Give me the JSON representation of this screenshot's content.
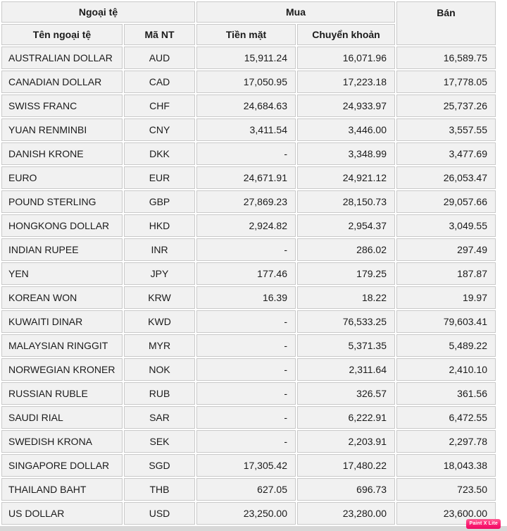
{
  "table": {
    "headers": {
      "currency_group": "Ngoại tệ",
      "buy_group": "Mua",
      "sell": "Bán",
      "currency_name": "Tên ngoại tệ",
      "currency_code": "Mã NT",
      "buy_cash": "Tiền mặt",
      "buy_transfer": "Chuyển khoản"
    },
    "rows": [
      {
        "name": "AUSTRALIAN DOLLAR",
        "code": "AUD",
        "cash": "15,911.24",
        "transfer": "16,071.96",
        "sell": "16,589.75"
      },
      {
        "name": "CANADIAN DOLLAR",
        "code": "CAD",
        "cash": "17,050.95",
        "transfer": "17,223.18",
        "sell": "17,778.05"
      },
      {
        "name": "SWISS FRANC",
        "code": "CHF",
        "cash": "24,684.63",
        "transfer": "24,933.97",
        "sell": "25,737.26"
      },
      {
        "name": "YUAN RENMINBI",
        "code": "CNY",
        "cash": "3,411.54",
        "transfer": "3,446.00",
        "sell": "3,557.55"
      },
      {
        "name": "DANISH KRONE",
        "code": "DKK",
        "cash": "-",
        "transfer": "3,348.99",
        "sell": "3,477.69"
      },
      {
        "name": "EURO",
        "code": "EUR",
        "cash": "24,671.91",
        "transfer": "24,921.12",
        "sell": "26,053.47"
      },
      {
        "name": "POUND STERLING",
        "code": "GBP",
        "cash": "27,869.23",
        "transfer": "28,150.73",
        "sell": "29,057.66"
      },
      {
        "name": "HONGKONG DOLLAR",
        "code": "HKD",
        "cash": "2,924.82",
        "transfer": "2,954.37",
        "sell": "3,049.55"
      },
      {
        "name": "INDIAN RUPEE",
        "code": "INR",
        "cash": "-",
        "transfer": "286.02",
        "sell": "297.49"
      },
      {
        "name": "YEN",
        "code": "JPY",
        "cash": "177.46",
        "transfer": "179.25",
        "sell": "187.87"
      },
      {
        "name": "KOREAN WON",
        "code": "KRW",
        "cash": "16.39",
        "transfer": "18.22",
        "sell": "19.97"
      },
      {
        "name": "KUWAITI DINAR",
        "code": "KWD",
        "cash": "-",
        "transfer": "76,533.25",
        "sell": "79,603.41"
      },
      {
        "name": "MALAYSIAN RINGGIT",
        "code": "MYR",
        "cash": "-",
        "transfer": "5,371.35",
        "sell": "5,489.22"
      },
      {
        "name": "NORWEGIAN KRONER",
        "code": "NOK",
        "cash": "-",
        "transfer": "2,311.64",
        "sell": "2,410.10"
      },
      {
        "name": "RUSSIAN RUBLE",
        "code": "RUB",
        "cash": "-",
        "transfer": "326.57",
        "sell": "361.56"
      },
      {
        "name": "SAUDI RIAL",
        "code": "SAR",
        "cash": "-",
        "transfer": "6,222.91",
        "sell": "6,472.55"
      },
      {
        "name": "SWEDISH KRONA",
        "code": "SEK",
        "cash": "-",
        "transfer": "2,203.91",
        "sell": "2,297.78"
      },
      {
        "name": "SINGAPORE DOLLAR",
        "code": "SGD",
        "cash": "17,305.42",
        "transfer": "17,480.22",
        "sell": "18,043.38"
      },
      {
        "name": "THAILAND BAHT",
        "code": "THB",
        "cash": "627.05",
        "transfer": "696.73",
        "sell": "723.50"
      },
      {
        "name": "US DOLLAR",
        "code": "USD",
        "cash": "23,250.00",
        "transfer": "23,280.00",
        "sell": "23,600.00"
      }
    ]
  },
  "chart_data": {
    "type": "table",
    "columns": [
      "Tên ngoại tệ",
      "Mã NT",
      "Mua Tiền mặt",
      "Mua Chuyển khoản",
      "Bán"
    ],
    "rows": [
      [
        "AUSTRALIAN DOLLAR",
        "AUD",
        "15,911.24",
        "16,071.96",
        "16,589.75"
      ],
      [
        "CANADIAN DOLLAR",
        "CAD",
        "17,050.95",
        "17,223.18",
        "17,778.05"
      ],
      [
        "SWISS FRANC",
        "CHF",
        "24,684.63",
        "24,933.97",
        "25,737.26"
      ],
      [
        "YUAN RENMINBI",
        "CNY",
        "3,411.54",
        "3,446.00",
        "3,557.55"
      ],
      [
        "DANISH KRONE",
        "DKK",
        "-",
        "3,348.99",
        "3,477.69"
      ],
      [
        "EURO",
        "EUR",
        "24,671.91",
        "24,921.12",
        "26,053.47"
      ],
      [
        "POUND STERLING",
        "GBP",
        "27,869.23",
        "28,150.73",
        "29,057.66"
      ],
      [
        "HONGKONG DOLLAR",
        "HKD",
        "2,924.82",
        "2,954.37",
        "3,049.55"
      ],
      [
        "INDIAN RUPEE",
        "INR",
        "-",
        "286.02",
        "297.49"
      ],
      [
        "YEN",
        "JPY",
        "177.46",
        "179.25",
        "187.87"
      ],
      [
        "KOREAN WON",
        "KRW",
        "16.39",
        "18.22",
        "19.97"
      ],
      [
        "KUWAITI DINAR",
        "KWD",
        "-",
        "76,533.25",
        "79,603.41"
      ],
      [
        "MALAYSIAN RINGGIT",
        "MYR",
        "-",
        "5,371.35",
        "5,489.22"
      ],
      [
        "NORWEGIAN KRONER",
        "NOK",
        "-",
        "2,311.64",
        "2,410.10"
      ],
      [
        "RUSSIAN RUBLE",
        "RUB",
        "-",
        "326.57",
        "361.56"
      ],
      [
        "SAUDI RIAL",
        "SAR",
        "-",
        "6,222.91",
        "6,472.55"
      ],
      [
        "SWEDISH KRONA",
        "SEK",
        "-",
        "2,203.91",
        "2,297.78"
      ],
      [
        "SINGAPORE DOLLAR",
        "SGD",
        "17,305.42",
        "17,480.22",
        "18,043.38"
      ],
      [
        "THAILAND BAHT",
        "THB",
        "627.05",
        "696.73",
        "723.50"
      ],
      [
        "US DOLLAR",
        "USD",
        "23,250.00",
        "23,280.00",
        "23,600.00"
      ]
    ]
  },
  "watermark": {
    "label": "Paint X Lite"
  },
  "colors": {
    "cell_background": "#f1f1f1",
    "cell_border": "#c9c9c9",
    "page_background": "#ffffff",
    "text": "#1b1b1b",
    "bottom_strip": "#d8d8d8",
    "watermark_pink": "#fb1e74"
  }
}
